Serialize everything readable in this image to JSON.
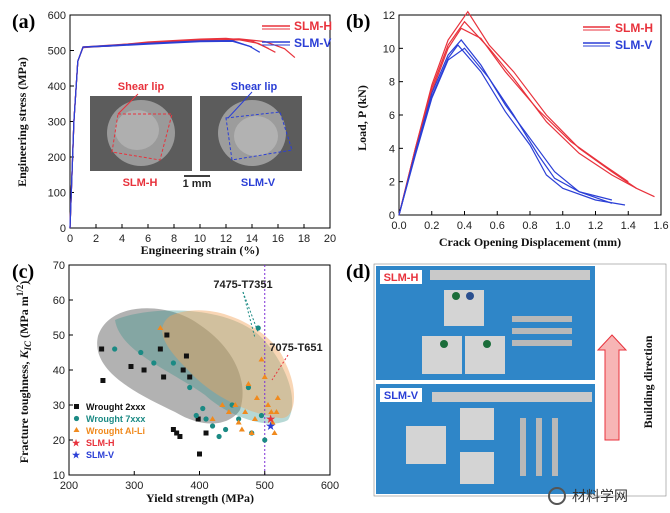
{
  "chart_data": [
    {
      "panel": "(a)",
      "type": "line",
      "xlabel": "Engineering strain (%)",
      "ylabel": "Engineering stress (MPa)",
      "xlim": [
        0,
        20
      ],
      "ylim": [
        0,
        600
      ],
      "xticks": [
        0,
        2,
        4,
        6,
        8,
        10,
        12,
        14,
        16,
        18,
        20
      ],
      "yticks": [
        0,
        100,
        200,
        300,
        400,
        500,
        600
      ],
      "legend": [
        "SLM-H",
        "SLM-V"
      ],
      "series": [
        {
          "name": "SLM-H",
          "color": "#e8323c",
          "points": [
            [
              0,
              0
            ],
            [
              0.3,
              300
            ],
            [
              0.6,
              470
            ],
            [
              1,
              510
            ],
            [
              3,
              515
            ],
            [
              6,
              522
            ],
            [
              10,
              530
            ],
            [
              13,
              533
            ],
            [
              15,
              525
            ],
            [
              16.5,
              505
            ],
            [
              17.3,
              480
            ]
          ]
        },
        {
          "name": "SLM-H",
          "color": "#e8323c",
          "points": [
            [
              0,
              0
            ],
            [
              0.3,
              300
            ],
            [
              0.6,
              470
            ],
            [
              1,
              510
            ],
            [
              3,
              512
            ],
            [
              6,
              520
            ],
            [
              10,
              528
            ],
            [
              13,
              530
            ],
            [
              14.5,
              520
            ],
            [
              15.8,
              495
            ]
          ]
        },
        {
          "name": "SLM-H",
          "color": "#e8323c",
          "points": [
            [
              0,
              0
            ],
            [
              0.3,
              300
            ],
            [
              0.6,
              470
            ],
            [
              1,
              508
            ],
            [
              3,
              513
            ],
            [
              6,
              524
            ],
            [
              10,
              532
            ],
            [
              12,
              534
            ],
            [
              14,
              527
            ],
            [
              15.3,
              505
            ]
          ]
        },
        {
          "name": "SLM-V",
          "color": "#2b3fd6",
          "points": [
            [
              0,
              0
            ],
            [
              0.3,
              300
            ],
            [
              0.6,
              470
            ],
            [
              1,
              510
            ],
            [
              3,
              514
            ],
            [
              6,
              520
            ],
            [
              10,
              527
            ],
            [
              12.5,
              528
            ],
            [
              13.8,
              512
            ],
            [
              14.6,
              495
            ]
          ]
        },
        {
          "name": "SLM-V",
          "color": "#2b3fd6",
          "points": [
            [
              0,
              0
            ],
            [
              0.3,
              300
            ],
            [
              0.6,
              470
            ],
            [
              1,
              509
            ],
            [
              3,
              512
            ],
            [
              6,
              518
            ],
            [
              10,
              525
            ],
            [
              12.5,
              526
            ],
            [
              14,
              510
            ]
          ]
        }
      ],
      "inset_labels": {
        "shear_lip_left": "Shear lip",
        "shear_lip_right": "Shear lip",
        "left": "SLM-H",
        "right": "SLM-V",
        "scale": "1 mm"
      }
    },
    {
      "panel": "(b)",
      "type": "line",
      "xlabel": "Crack Opening Displacement (mm)",
      "ylabel": "Load, P (kN)",
      "xlim": [
        0,
        1.6
      ],
      "ylim": [
        0,
        12
      ],
      "xticks": [
        0.0,
        0.2,
        0.4,
        0.6,
        0.8,
        1.0,
        1.2,
        1.4,
        1.6
      ],
      "yticks": [
        0,
        2,
        4,
        6,
        8,
        10,
        12
      ],
      "legend": [
        "SLM-H",
        "SLM-V"
      ],
      "series": [
        {
          "name": "SLM-H",
          "color": "#e8323c",
          "points": [
            [
              0,
              0
            ],
            [
              0.1,
              4
            ],
            [
              0.2,
              7.8
            ],
            [
              0.3,
              10.5
            ],
            [
              0.42,
              12.2
            ],
            [
              0.55,
              10.2
            ],
            [
              0.7,
              8.6
            ],
            [
              0.9,
              6.0
            ],
            [
              1.1,
              4.0
            ],
            [
              1.3,
              2.6
            ],
            [
              1.45,
              1.6
            ],
            [
              1.56,
              1.1
            ]
          ]
        },
        {
          "name": "SLM-H",
          "color": "#e8323c",
          "points": [
            [
              0,
              0
            ],
            [
              0.1,
              4
            ],
            [
              0.2,
              7.6
            ],
            [
              0.3,
              10.2
            ],
            [
              0.4,
              11.6
            ],
            [
              0.55,
              10.0
            ],
            [
              0.7,
              8.2
            ],
            [
              0.9,
              5.6
            ],
            [
              1.1,
              3.7
            ],
            [
              1.3,
              2.4
            ],
            [
              1.45,
              1.6
            ]
          ]
        },
        {
          "name": "SLM-H",
          "color": "#e8323c",
          "points": [
            [
              0,
              0
            ],
            [
              0.1,
              3.8
            ],
            [
              0.2,
              7.4
            ],
            [
              0.3,
              10.0
            ],
            [
              0.38,
              11.2
            ],
            [
              0.5,
              10.6
            ],
            [
              0.65,
              8.6
            ],
            [
              0.85,
              6.3
            ],
            [
              1.05,
              4.4
            ],
            [
              1.25,
              3.0
            ],
            [
              1.4,
              2.0
            ]
          ]
        },
        {
          "name": "SLM-V",
          "color": "#2b3fd6",
          "points": [
            [
              0,
              0
            ],
            [
              0.1,
              3.8
            ],
            [
              0.2,
              7.3
            ],
            [
              0.3,
              9.6
            ],
            [
              0.38,
              10.5
            ],
            [
              0.5,
              9.0
            ],
            [
              0.65,
              6.6
            ],
            [
              0.8,
              4.6
            ],
            [
              0.95,
              2.6
            ],
            [
              1.1,
              1.4
            ],
            [
              1.3,
              0.7
            ]
          ]
        },
        {
          "name": "SLM-V",
          "color": "#2b3fd6",
          "points": [
            [
              0,
              0
            ],
            [
              0.1,
              3.7
            ],
            [
              0.2,
              7.1
            ],
            [
              0.3,
              9.4
            ],
            [
              0.36,
              10.2
            ],
            [
              0.5,
              8.6
            ],
            [
              0.65,
              6.2
            ],
            [
              0.8,
              4.2
            ],
            [
              0.9,
              2.4
            ],
            [
              1.0,
              1.6
            ],
            [
              1.2,
              0.9
            ],
            [
              1.38,
              0.6
            ]
          ]
        },
        {
          "name": "SLM-V",
          "color": "#2b3fd6",
          "points": [
            [
              0,
              0
            ],
            [
              0.1,
              3.6
            ],
            [
              0.2,
              7.0
            ],
            [
              0.3,
              9.3
            ],
            [
              0.4,
              10.0
            ],
            [
              0.55,
              8.2
            ],
            [
              0.7,
              6.0
            ],
            [
              0.85,
              3.6
            ],
            [
              0.95,
              2.2
            ],
            [
              1.1,
              1.4
            ],
            [
              1.3,
              0.9
            ]
          ]
        }
      ]
    },
    {
      "panel": "(c)",
      "type": "scatter",
      "xlabel": "Yield strength (MPa)",
      "ylabel": "Fracture toughness, K_IC (MPa m^1/2)",
      "ylabel_main": "Fracture toughness, ",
      "ylabel_k": "K",
      "ylabel_sub": "IC",
      "ylabel_unit": " (MPa m",
      "ylabel_sup": "1/2",
      "ylabel_close": ")",
      "xlim": [
        200,
        600
      ],
      "ylim": [
        10,
        70
      ],
      "xticks": [
        200,
        300,
        400,
        500,
        600
      ],
      "yticks": [
        10,
        20,
        30,
        40,
        50,
        60,
        70
      ],
      "vline_x": 500,
      "annotations": {
        "a1": "7475-T7351",
        "a2": "7075-T651"
      },
      "series": [
        {
          "name": "Wrought 2xxx",
          "color": "#111111",
          "marker": "square",
          "points": [
            [
              250,
              46
            ],
            [
              252,
              37
            ],
            [
              295,
              41
            ],
            [
              315,
              40
            ],
            [
              340,
              46
            ],
            [
              345,
              38
            ],
            [
              350,
              50
            ],
            [
              360,
              23
            ],
            [
              370,
              21
            ],
            [
              365,
              22
            ],
            [
              380,
              44
            ],
            [
              385,
              38
            ],
            [
              375,
              40
            ],
            [
              398,
              26
            ],
            [
              400,
              16
            ],
            [
              410,
              22
            ]
          ]
        },
        {
          "name": "Wrought 7xxx",
          "color": "#1b8a84",
          "marker": "circle",
          "points": [
            [
              270,
              46
            ],
            [
              310,
              45
            ],
            [
              330,
              42
            ],
            [
              360,
              42
            ],
            [
              385,
              35
            ],
            [
              395,
              27
            ],
            [
              405,
              29
            ],
            [
              410,
              26
            ],
            [
              420,
              24
            ],
            [
              430,
              21
            ],
            [
              440,
              23
            ],
            [
              450,
              30
            ],
            [
              460,
              26
            ],
            [
              475,
              35
            ],
            [
              480,
              22
            ],
            [
              490,
              52
            ],
            [
              495,
              27
            ],
            [
              500,
              20
            ]
          ]
        },
        {
          "name": "Wrought Al-Li",
          "color": "#f08a1e",
          "marker": "triangle",
          "points": [
            [
              340,
              52
            ],
            [
              420,
              26
            ],
            [
              435,
              30
            ],
            [
              445,
              28
            ],
            [
              455,
              30
            ],
            [
              460,
              25
            ],
            [
              465,
              23
            ],
            [
              470,
              28
            ],
            [
              475,
              36
            ],
            [
              480,
              22
            ],
            [
              488,
              32
            ],
            [
              495,
              43
            ],
            [
              500,
              38
            ],
            [
              505,
              30
            ],
            [
              510,
              28
            ],
            [
              512,
              25
            ],
            [
              515,
              22
            ],
            [
              518,
              28
            ],
            [
              520,
              32
            ],
            [
              485,
              26
            ]
          ]
        },
        {
          "name": "SLM-H",
          "color": "#e8323c",
          "marker": "star",
          "points": [
            [
              509,
              26
            ]
          ]
        },
        {
          "name": "SLM-V",
          "color": "#2b3fd6",
          "marker": "star",
          "points": [
            [
              509,
              24
            ]
          ]
        }
      ]
    }
  ],
  "panels": {
    "a": "(a)",
    "b": "(b)",
    "c": "(c)",
    "d": "(d)"
  },
  "photo_d": {
    "top_label": "SLM-H",
    "bottom_label": "SLM-V",
    "direction": "Building direction"
  },
  "watermark": "材料学网",
  "colors": {
    "red": "#e8323c",
    "blue": "#2b3fd6",
    "teal": "#1b8a84",
    "orange": "#f08a1e",
    "photo_bg": "#2f86c8"
  }
}
